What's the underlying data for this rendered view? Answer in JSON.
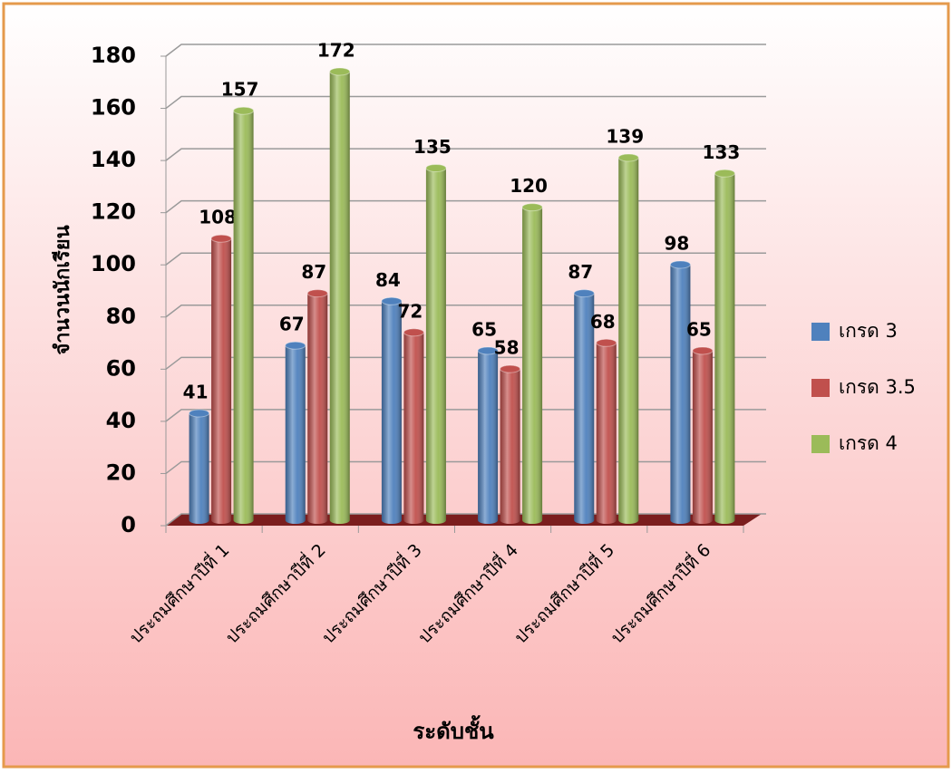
{
  "chart_data": {
    "type": "bar3d",
    "categories": [
      "ประถมศึกษาปีที่ 1",
      "ประถมศึกษาปีที่ 2",
      "ประถมศึกษาปีที่ 3",
      "ประถมศึกษาปีที่ 4",
      "ประถมศึกษาปีที่ 5",
      "ประถมศึกษาปีที่ 6"
    ],
    "series": [
      {
        "name": "เกรด 3",
        "color": "#4f81bd",
        "values": [
          41,
          67,
          84,
          65,
          87,
          98
        ]
      },
      {
        "name": "เกรด 3.5",
        "color": "#c0504d",
        "values": [
          108,
          87,
          72,
          58,
          68,
          65
        ]
      },
      {
        "name": "เกรด 4",
        "color": "#9bbb59",
        "values": [
          157,
          172,
          135,
          120,
          139,
          133
        ]
      }
    ],
    "x_label": "ระดับชั้น",
    "y_label": "จำนวนนักเรียน",
    "ylim": [
      0,
      180
    ],
    "yticks": [
      0,
      20,
      40,
      60,
      80,
      100,
      120,
      140,
      160,
      180
    ],
    "grid": true,
    "legend": "right"
  }
}
